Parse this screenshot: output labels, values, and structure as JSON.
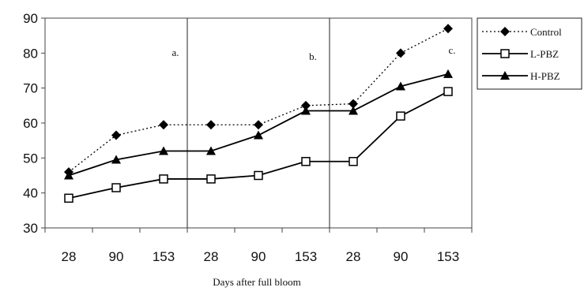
{
  "chart_data": {
    "type": "line",
    "categories": [
      "28",
      "90",
      "153",
      "28",
      "90",
      "153",
      "28",
      "90",
      "153"
    ],
    "xlabel": "Days after full bloom",
    "ylabel": "",
    "ylim": [
      30,
      90
    ],
    "yticks": [
      30,
      40,
      50,
      60,
      70,
      80,
      90
    ],
    "grid": false,
    "legend_position": "right",
    "panel_annotations": [
      "a.",
      "b.",
      "c."
    ],
    "series": [
      {
        "name": "Control",
        "marker": "diamond-filled",
        "line": "dotted",
        "values": [
          46,
          56.5,
          59.5,
          59.5,
          59.5,
          65,
          65.5,
          80,
          87
        ]
      },
      {
        "name": "L-PBZ",
        "marker": "square-open",
        "line": "solid",
        "values": [
          38.5,
          41.5,
          44,
          44,
          45,
          49,
          49,
          62,
          69
        ]
      },
      {
        "name": "H-PBZ",
        "marker": "triangle-filled",
        "line": "solid",
        "values": [
          45,
          49.5,
          52,
          52,
          56.5,
          63.5,
          63.5,
          70.5,
          74
        ]
      }
    ]
  }
}
